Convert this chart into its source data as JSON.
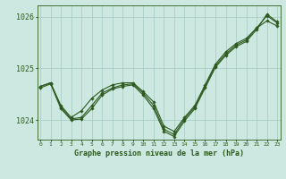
{
  "title": "Graphe pression niveau de la mer (hPa)",
  "background_color": "#cce8e0",
  "line_color": "#2d5a1e",
  "grid_color": "#aacec6",
  "x_ticks": [
    0,
    1,
    2,
    3,
    4,
    5,
    6,
    7,
    8,
    9,
    10,
    11,
    12,
    13,
    14,
    15,
    16,
    17,
    18,
    19,
    20,
    21,
    22,
    23
  ],
  "y_ticks": [
    1024,
    1025,
    1026
  ],
  "ylim": [
    1023.62,
    1026.22
  ],
  "xlim": [
    -0.3,
    23.3
  ],
  "series": [
    [
      1024.65,
      1024.72,
      1024.28,
      1024.05,
      1024.18,
      1024.42,
      1024.58,
      1024.68,
      1024.72,
      1024.72,
      1024.55,
      1024.35,
      1023.88,
      1023.78,
      1024.05,
      1024.28,
      1024.68,
      1025.08,
      1025.32,
      1025.48,
      1025.58,
      1025.78,
      1025.92,
      1025.82
    ],
    [
      1024.65,
      1024.72,
      1024.25,
      1024.02,
      1024.05,
      1024.28,
      1024.52,
      1024.62,
      1024.68,
      1024.7,
      1024.52,
      1024.28,
      1023.82,
      1023.72,
      1024.02,
      1024.25,
      1024.65,
      1025.05,
      1025.28,
      1025.45,
      1025.55,
      1025.78,
      1026.02,
      1025.88
    ],
    [
      1024.62,
      1024.7,
      1024.22,
      1024.0,
      1024.02,
      1024.22,
      1024.48,
      1024.6,
      1024.65,
      1024.68,
      1024.48,
      1024.22,
      1023.78,
      1023.68,
      1023.98,
      1024.22,
      1024.62,
      1025.02,
      1025.25,
      1025.42,
      1025.52,
      1025.75,
      1026.05,
      1025.9
    ]
  ]
}
